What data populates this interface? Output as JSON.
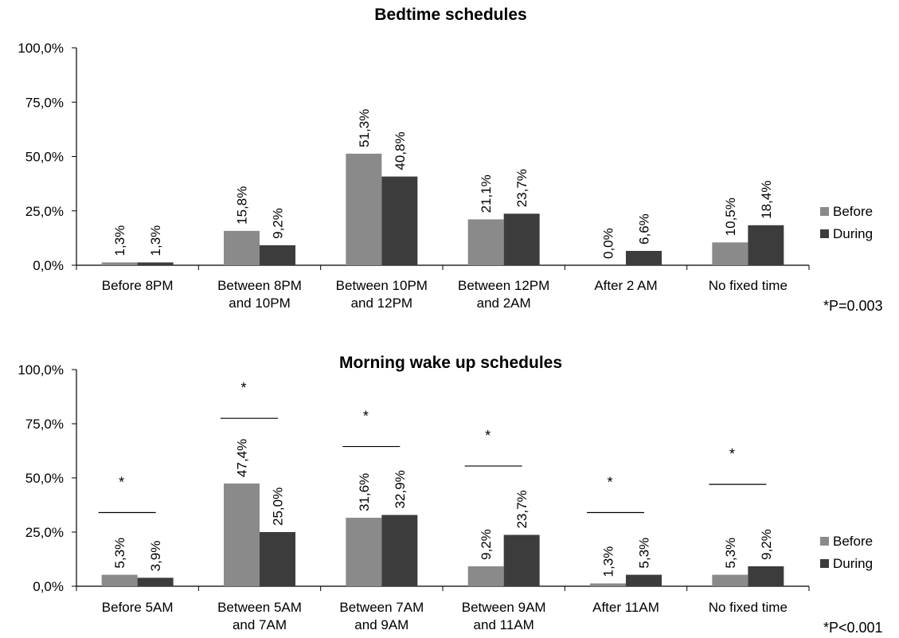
{
  "chart_data": [
    {
      "type": "bar",
      "title": "Bedtime schedules",
      "categories": [
        [
          "Before 8PM"
        ],
        [
          "Between 8PM",
          "and 10PM"
        ],
        [
          "Between 10PM",
          "and 12PM"
        ],
        [
          "Between 12PM",
          "and 2AM"
        ],
        [
          "After 2 AM"
        ],
        [
          "No fixed time"
        ]
      ],
      "series": [
        {
          "name": "Before",
          "values": [
            1.3,
            15.8,
            51.3,
            21.1,
            0.0,
            10.5
          ],
          "labels": [
            "1,3%",
            "15,8%",
            "51,3%",
            "21,1%",
            "0,0%",
            "10,5%"
          ]
        },
        {
          "name": "During",
          "values": [
            1.3,
            9.2,
            40.8,
            23.7,
            6.6,
            18.4
          ],
          "labels": [
            "1,3%",
            "9,2%",
            "40,8%",
            "23,7%",
            "6,6%",
            "18,4%"
          ]
        }
      ],
      "yticks": [
        "0,0%",
        "25,0%",
        "50,0%",
        "75,0%",
        "100,0%"
      ],
      "ylim": [
        0,
        100
      ],
      "note": "*P=0.003",
      "significance_markers": [],
      "legend_position": "right"
    },
    {
      "type": "bar",
      "title": "Morning wake up schedules",
      "categories": [
        [
          "Before 5AM"
        ],
        [
          "Between 5AM",
          "and 7AM"
        ],
        [
          "Between 7AM",
          "and 9AM"
        ],
        [
          "Between 9AM",
          "and 11AM"
        ],
        [
          "After 11AM"
        ],
        [
          "No fixed time"
        ]
      ],
      "series": [
        {
          "name": "Before",
          "values": [
            5.3,
            47.4,
            31.6,
            9.2,
            1.3,
            5.3
          ],
          "labels": [
            "5,3%",
            "47,4%",
            "31,6%",
            "9,2%",
            "1,3%",
            "5,3%"
          ]
        },
        {
          "name": "During",
          "values": [
            3.9,
            25.0,
            32.9,
            23.7,
            5.3,
            9.2
          ],
          "labels": [
            "3,9%",
            "25,0%",
            "32,9%",
            "23,7%",
            "5,3%",
            "9,2%"
          ]
        }
      ],
      "yticks": [
        "0,0%",
        "25,0%",
        "50,0%",
        "75,0%",
        "100,0%"
      ],
      "ylim": [
        0,
        100
      ],
      "note": "*P<0.001",
      "significance_markers": [
        {
          "category": 0,
          "level": 34,
          "label": "*"
        },
        {
          "category": 1,
          "level": 77.5,
          "label": "*"
        },
        {
          "category": 2,
          "level": 64.5,
          "label": "*"
        },
        {
          "category": 3,
          "level": 55.5,
          "label": "*"
        },
        {
          "category": 4,
          "level": 34,
          "label": "*"
        },
        {
          "category": 5,
          "level": 47,
          "label": "*"
        }
      ],
      "legend_position": "right"
    }
  ],
  "colors": {
    "Before": "#8a8a8a",
    "During": "#3c3c3c",
    "axis": "#000000"
  }
}
